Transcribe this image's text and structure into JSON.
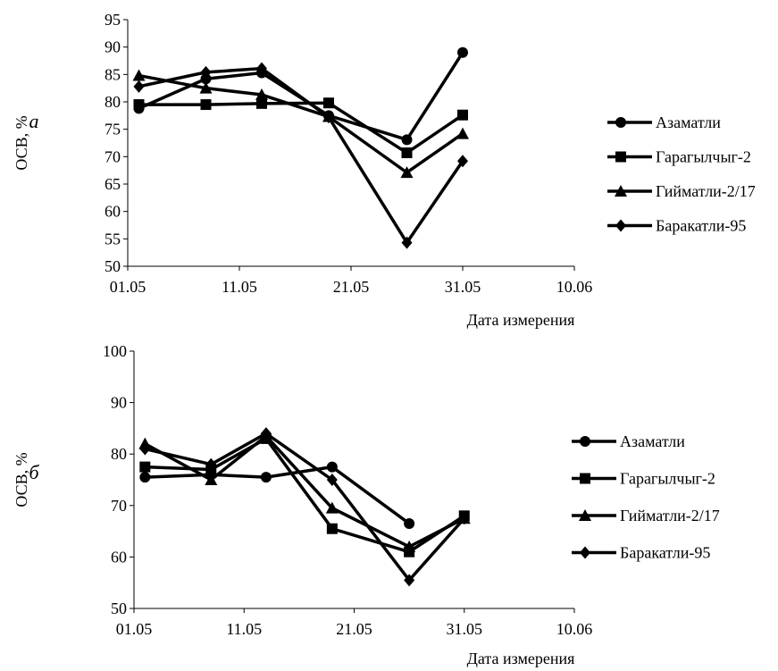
{
  "chart_data": [
    {
      "type": "line",
      "panel_label": "а",
      "xlabel": "Дата измерения",
      "ylabel": "ОСВ, %",
      "ylim": [
        50,
        95
      ],
      "y_ticks": [
        50,
        55,
        60,
        65,
        70,
        75,
        80,
        85,
        90,
        95
      ],
      "x_ticks": [
        "01.05",
        "11.05",
        "21.05",
        "31.05",
        "10.06"
      ],
      "grid": false,
      "legend_position": "right",
      "series": [
        {
          "name": "Азаматли",
          "marker": "circle",
          "x": [
            "02.05",
            "08.05",
            "13.05",
            "19.05",
            "26.05",
            "31.05"
          ],
          "values": [
            78.8,
            84.2,
            85.3,
            77.5,
            73.1,
            89.0
          ]
        },
        {
          "name": "Гарагылчыг-2",
          "marker": "square",
          "x": [
            "02.05",
            "08.05",
            "13.05",
            "19.05",
            "26.05",
            "31.05"
          ],
          "values": [
            79.5,
            79.5,
            79.7,
            79.8,
            70.7,
            77.6
          ]
        },
        {
          "name": "Гийматли-2/17",
          "marker": "triangle",
          "x": [
            "02.05",
            "08.05",
            "13.05",
            "19.05",
            "26.05",
            "31.05"
          ],
          "values": [
            84.8,
            82.5,
            81.3,
            77.3,
            67.1,
            74.2
          ]
        },
        {
          "name": "Баракатли-95",
          "marker": "diamond",
          "x": [
            "02.05",
            "08.05",
            "13.05",
            "19.05",
            "26.05",
            "31.05"
          ],
          "values": [
            82.8,
            85.4,
            86.1,
            77.2,
            54.3,
            69.2
          ]
        }
      ]
    },
    {
      "type": "line",
      "panel_label": "б",
      "xlabel": "Дата измерения",
      "ylabel": "ОСВ, %",
      "ylim": [
        50,
        100
      ],
      "y_ticks": [
        50,
        60,
        70,
        80,
        90,
        100
      ],
      "x_ticks": [
        "01.05",
        "11.05",
        "21.05",
        "31.05",
        "10.06"
      ],
      "grid": false,
      "legend_position": "right",
      "series": [
        {
          "name": "Азаматли",
          "marker": "circle",
          "x": [
            "02.05",
            "08.05",
            "13.05",
            "19.05",
            "26.05"
          ],
          "values": [
            75.5,
            76.0,
            75.5,
            77.5,
            66.5
          ]
        },
        {
          "name": "Гарагылчыг-2",
          "marker": "square",
          "x": [
            "02.05",
            "08.05",
            "13.05",
            "19.05",
            "26.05",
            "31.05"
          ],
          "values": [
            77.5,
            77.0,
            83.0,
            65.5,
            61.0,
            68.0
          ]
        },
        {
          "name": "Гийматли-2/17",
          "marker": "triangle",
          "x": [
            "02.05",
            "08.05",
            "13.05",
            "19.05",
            "26.05",
            "31.05"
          ],
          "values": [
            82.0,
            75.0,
            83.5,
            69.5,
            62.0,
            67.5
          ]
        },
        {
          "name": "Баракатли-95",
          "marker": "diamond",
          "x": [
            "02.05",
            "08.05",
            "13.05",
            "19.05",
            "26.05",
            "31.05"
          ],
          "values": [
            81.0,
            78.0,
            84.0,
            75.0,
            55.5,
            67.5
          ]
        }
      ]
    }
  ]
}
